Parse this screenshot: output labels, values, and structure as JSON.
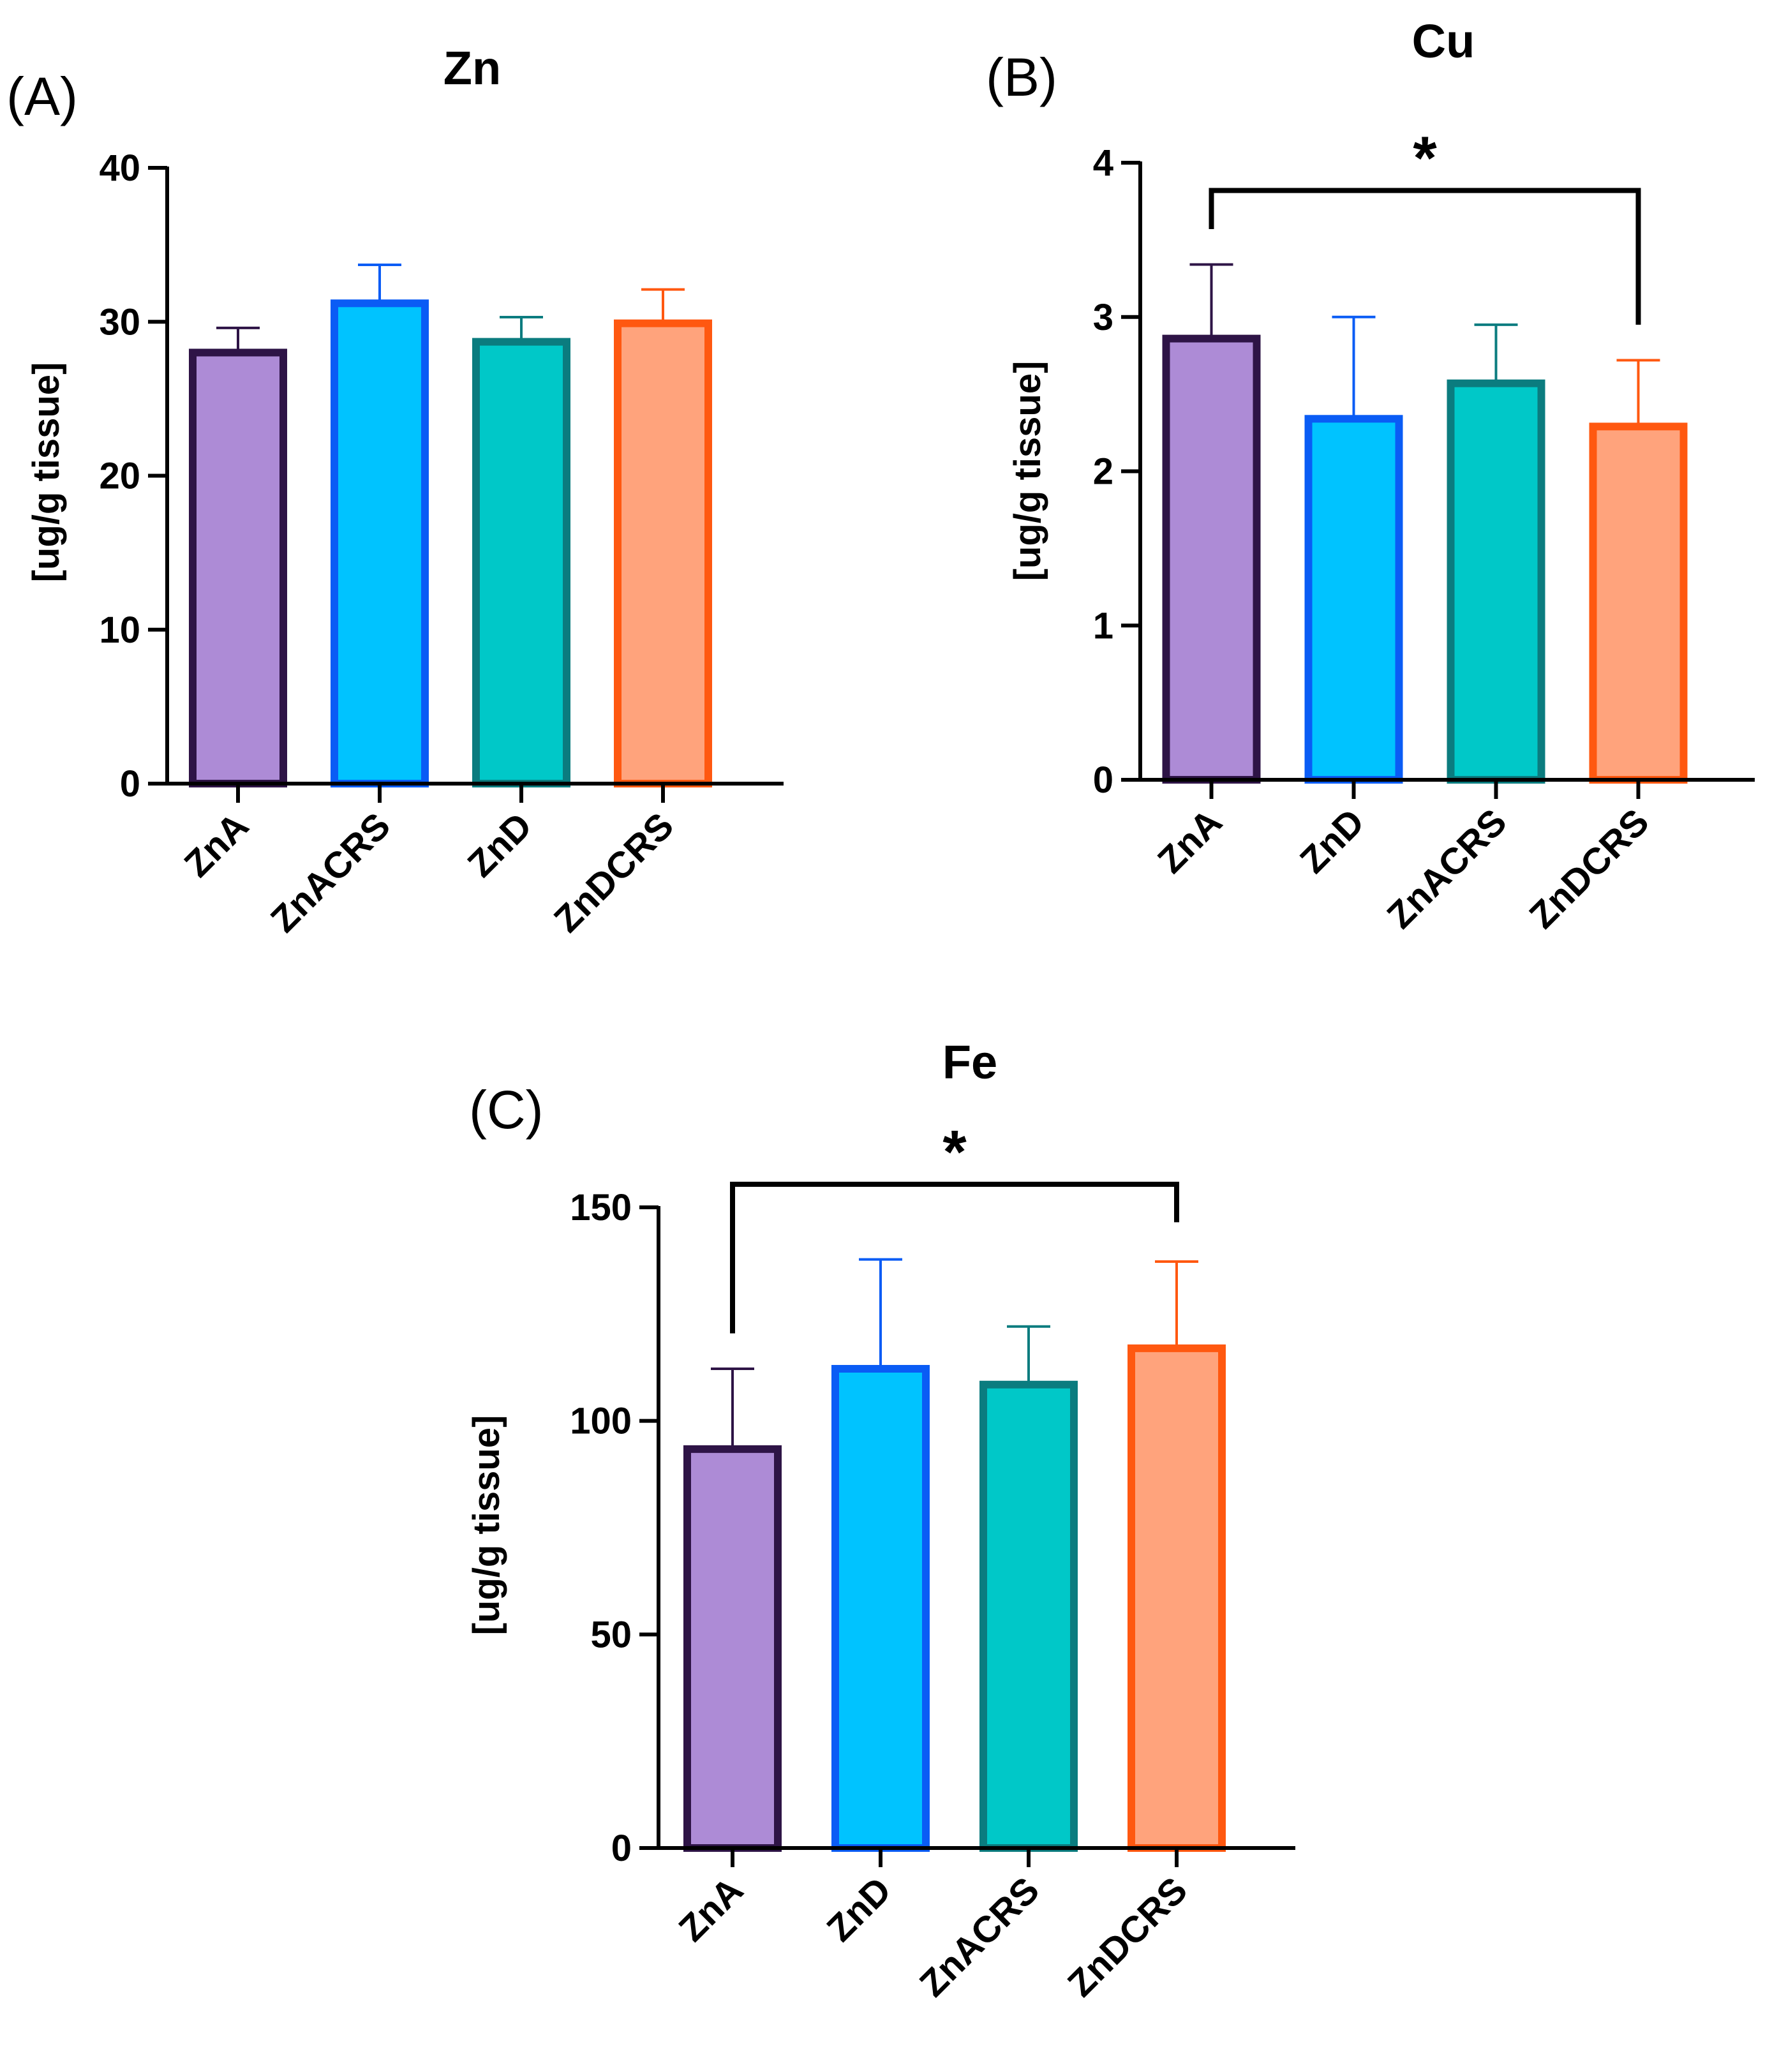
{
  "chart_data": [
    {
      "type": "bar",
      "panel": "(A)",
      "title": "Zn",
      "xlabel": "",
      "ylabel": "[ug/g tissue]",
      "ylim": [
        0,
        40
      ],
      "yticks": [
        "0",
        "10",
        "20",
        "30",
        "40"
      ],
      "categories": [
        "ZnA",
        "ZnACRS",
        "ZnD",
        "ZnDCRS"
      ],
      "values": [
        28.0,
        31.2,
        28.7,
        29.9
      ],
      "errors": [
        1.6,
        2.5,
        1.6,
        2.2
      ],
      "colors": {
        "fill": [
          "#ad8bd6",
          "#00c3ff",
          "#00c8c8",
          "#ffa37c"
        ],
        "stroke": [
          "#2e1446",
          "#0a5cf5",
          "#0b7c7f",
          "#ff5810"
        ]
      },
      "significance": null
    },
    {
      "type": "bar",
      "panel": "(B)",
      "title": "Cu",
      "xlabel": "",
      "ylabel": "[ug/g tissue]",
      "ylim": [
        0,
        4
      ],
      "yticks": [
        "0",
        "1",
        "2",
        "3",
        "4"
      ],
      "categories": [
        "ZnA",
        "ZnD",
        "ZnACRS",
        "ZnDCRS"
      ],
      "values": [
        2.86,
        2.34,
        2.57,
        2.29
      ],
      "errors": [
        0.48,
        0.66,
        0.38,
        0.43
      ],
      "colors": {
        "fill": [
          "#ad8bd6",
          "#00c3ff",
          "#00c8c8",
          "#ffa37c"
        ],
        "stroke": [
          "#2e1446",
          "#0a5cf5",
          "#0b7c7f",
          "#ff5810"
        ]
      },
      "significance": {
        "from": 0,
        "to": 3,
        "label": "*",
        "y": 3.82,
        "left_end": 3.57,
        "right_end": 2.95
      }
    },
    {
      "type": "bar",
      "panel": "(C)",
      "title": "Fe",
      "xlabel": "",
      "ylabel": "[ug/g tissue]",
      "ylim": [
        0,
        150
      ],
      "yticks": [
        "0",
        "50",
        "100",
        "150"
      ],
      "categories": [
        "ZnA",
        "ZnD",
        "ZnACRS",
        "ZnDCRS"
      ],
      "values": [
        93.4,
        112.2,
        108.5,
        117.0
      ],
      "errors": [
        18.8,
        25.6,
        13.6,
        20.3
      ],
      "colors": {
        "fill": [
          "#ad8bd6",
          "#00c3ff",
          "#00c8c8",
          "#ffa37c"
        ],
        "stroke": [
          "#2e1446",
          "#0a5cf5",
          "#0b7c7f",
          "#ff5810"
        ]
      },
      "significance": {
        "from": 0,
        "to": 3,
        "label": "*",
        "y": 155.4,
        "left_end": 120.5,
        "right_end": 146.5
      }
    }
  ]
}
